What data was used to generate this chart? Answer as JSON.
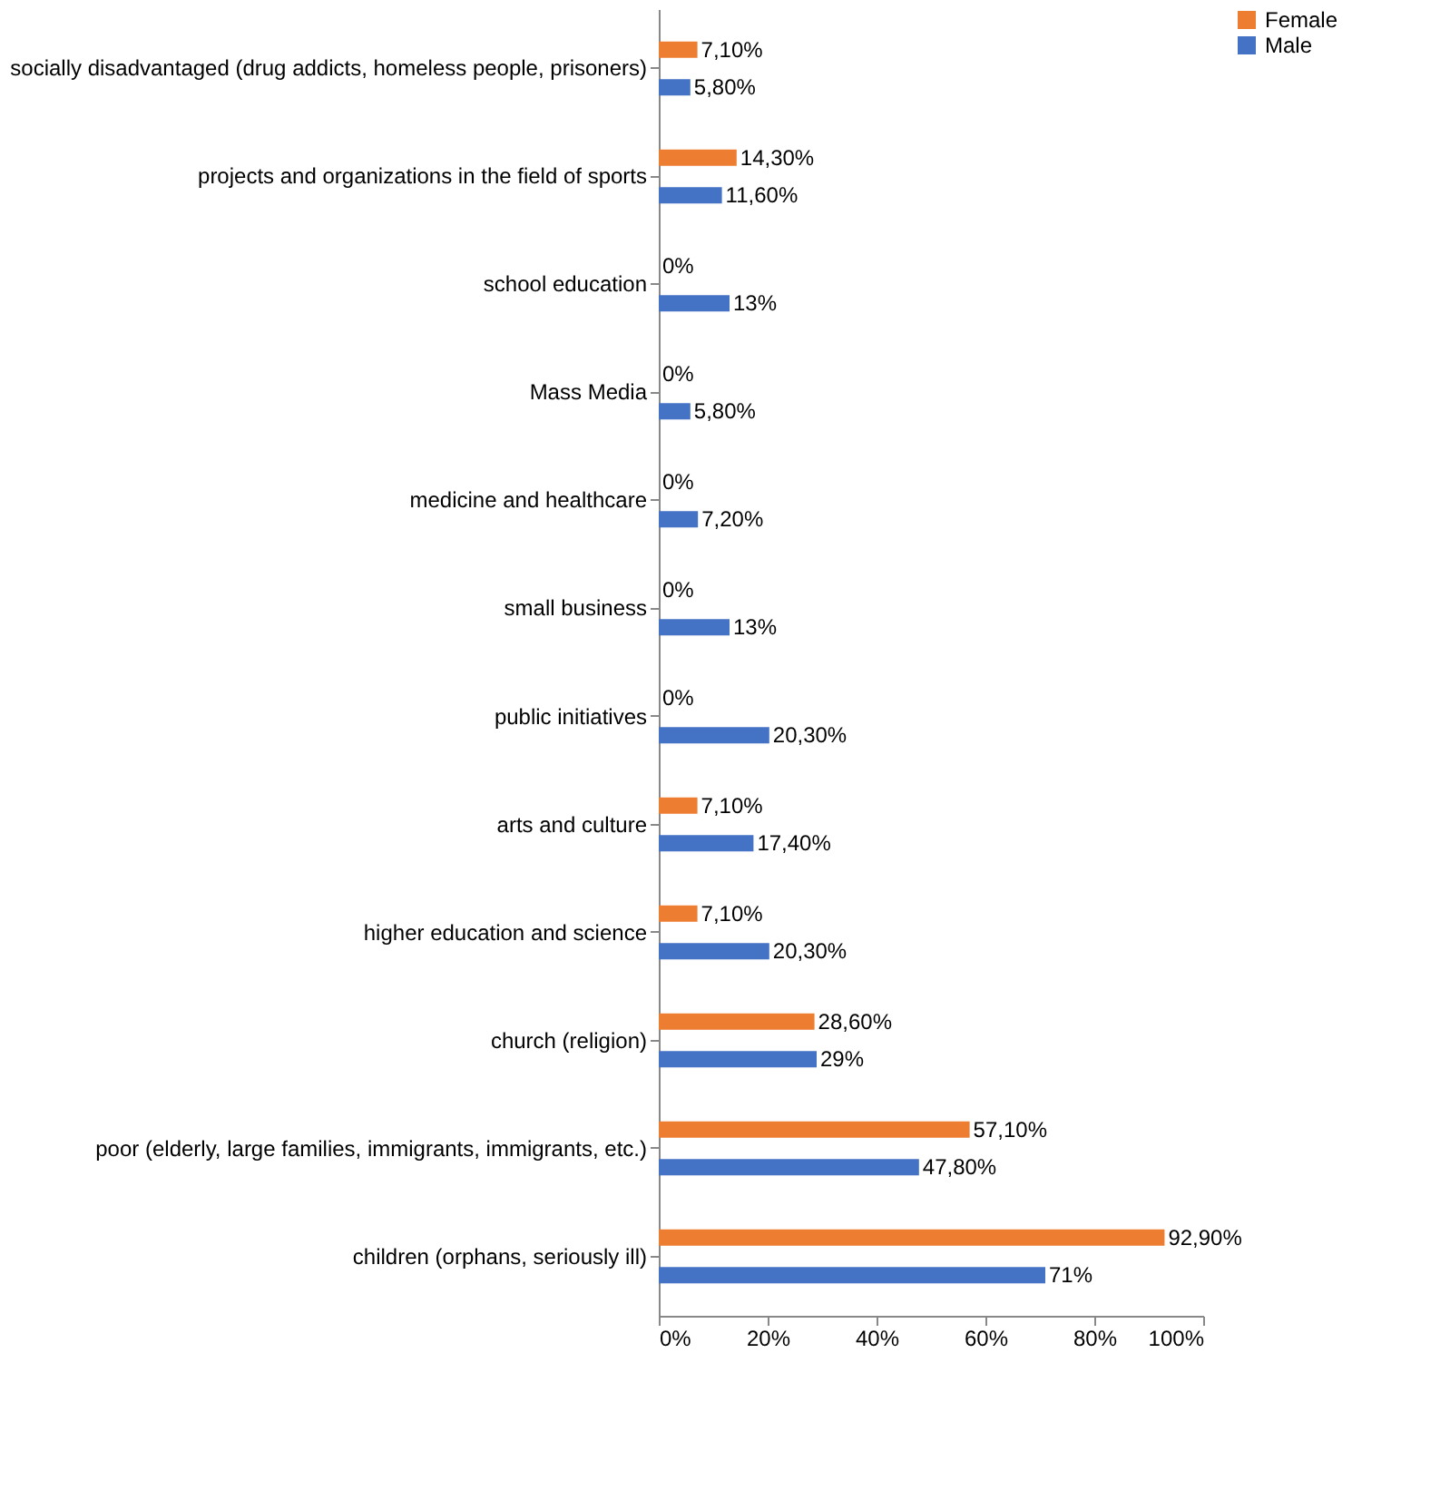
{
  "chart_data": {
    "type": "bar",
    "orientation": "horizontal",
    "categories": [
      "socially disadvantaged (drug addicts, homeless people, prisoners)",
      "projects and organizations in the field of sports",
      "school education",
      "Mass Media",
      "medicine and healthcare",
      "small business",
      "public initiatives",
      "arts and culture",
      "higher education and science",
      "church (religion)",
      "poor (elderly, large families, immigrants, immigrants, etc.)",
      "children (orphans, seriously ill)"
    ],
    "series": [
      {
        "name": "Female",
        "color": "#ed7d31",
        "values": [
          7.1,
          14.3,
          0,
          0,
          0,
          0,
          0,
          7.1,
          7.1,
          28.6,
          57.1,
          92.9
        ],
        "value_labels": [
          "7,10%",
          "14,30%",
          "0%",
          "0%",
          "0%",
          "0%",
          "0%",
          "7,10%",
          "7,10%",
          "28,60%",
          "57,10%",
          "92,90%"
        ]
      },
      {
        "name": "Male",
        "color": "#4472c4",
        "values": [
          5.8,
          11.6,
          13,
          5.8,
          7.2,
          13,
          20.3,
          17.4,
          20.3,
          29,
          47.8,
          71
        ],
        "value_labels": [
          "5,80%",
          "11,60%",
          "13%",
          "5,80%",
          "7,20%",
          "13%",
          "20,30%",
          "17,40%",
          "20,30%",
          "29%",
          "47,80%",
          "71%"
        ]
      }
    ],
    "xlim": [
      0,
      100
    ],
    "xticks": [
      {
        "value": 0,
        "label": "0%"
      },
      {
        "value": 20,
        "label": "20%"
      },
      {
        "value": 40,
        "label": "40%"
      },
      {
        "value": 60,
        "label": "60%"
      },
      {
        "value": 80,
        "label": "80%"
      },
      {
        "value": 100,
        "label": "100%"
      }
    ],
    "grid": false,
    "legend": "right"
  }
}
